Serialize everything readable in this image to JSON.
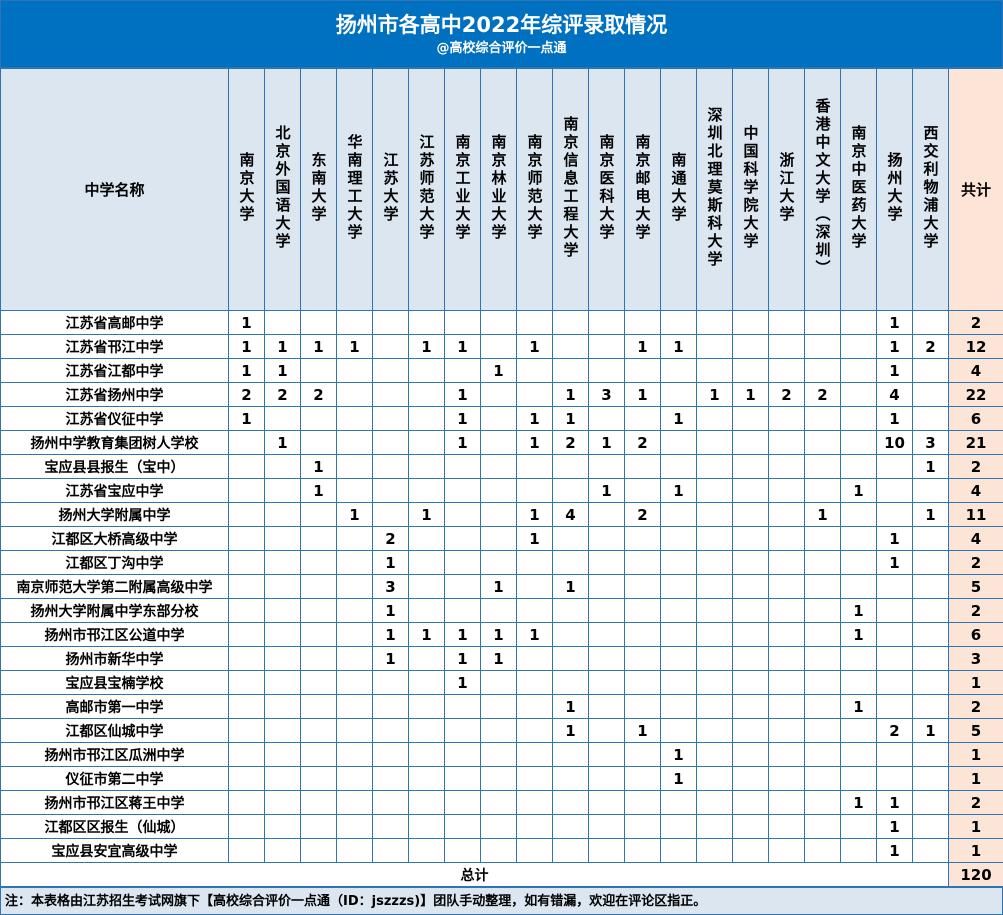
{
  "title": "扬州市各高中2022年综评录取情况",
  "subtitle": "@高校综合评价一点通",
  "colors": {
    "title_bg": "#0070c0",
    "header_bg": "#dce6f1",
    "total_bg": "#fce4d6",
    "border": "#2f75b5"
  },
  "table": {
    "name_header": "中学名称",
    "total_header": "共计",
    "universities": [
      "南京大学",
      "北京外国语大学",
      "东南大学",
      "华南理工大学",
      "江苏大学",
      "江苏师范大学",
      "南京工业大学",
      "南京林业大学",
      "南京师范大学",
      "南京信息工程大学",
      "南京医科大学",
      "南京邮电大学",
      "南通大学",
      "深圳北理莫斯科大学",
      "中国科学院大学",
      "浙江大学",
      "香港中文大学（深圳）",
      "南京中医药大学",
      "扬州大学",
      "西交利物浦大学"
    ],
    "rows": [
      {
        "school": "江苏省高邮中学",
        "values": [
          1,
          null,
          null,
          null,
          null,
          null,
          null,
          null,
          null,
          null,
          null,
          null,
          null,
          null,
          null,
          null,
          null,
          null,
          1,
          null
        ],
        "total": 2
      },
      {
        "school": "江苏省邗江中学",
        "values": [
          1,
          1,
          1,
          1,
          null,
          1,
          1,
          null,
          1,
          null,
          null,
          1,
          1,
          null,
          null,
          null,
          null,
          null,
          1,
          2
        ],
        "total": 12
      },
      {
        "school": "江苏省江都中学",
        "values": [
          1,
          1,
          null,
          null,
          null,
          null,
          null,
          1,
          null,
          null,
          null,
          null,
          null,
          null,
          null,
          null,
          null,
          null,
          1,
          null
        ],
        "total": 4
      },
      {
        "school": "江苏省扬州中学",
        "values": [
          2,
          2,
          2,
          null,
          null,
          null,
          1,
          null,
          null,
          1,
          3,
          1,
          null,
          1,
          1,
          2,
          2,
          null,
          4,
          null
        ],
        "total": 22
      },
      {
        "school": "江苏省仪征中学",
        "values": [
          1,
          null,
          null,
          null,
          null,
          null,
          1,
          null,
          1,
          1,
          null,
          null,
          1,
          null,
          null,
          null,
          null,
          null,
          1,
          null
        ],
        "total": 6
      },
      {
        "school": "扬州中学教育集团树人学校",
        "values": [
          null,
          1,
          null,
          null,
          null,
          null,
          1,
          null,
          1,
          2,
          1,
          2,
          null,
          null,
          null,
          null,
          null,
          null,
          10,
          3
        ],
        "total": 21
      },
      {
        "school": "宝应县县报生（宝中）",
        "values": [
          null,
          null,
          1,
          null,
          null,
          null,
          null,
          null,
          null,
          null,
          null,
          null,
          null,
          null,
          null,
          null,
          null,
          null,
          null,
          1
        ],
        "total": 2
      },
      {
        "school": "江苏省宝应中学",
        "values": [
          null,
          null,
          1,
          null,
          null,
          null,
          null,
          null,
          null,
          null,
          1,
          null,
          1,
          null,
          null,
          null,
          null,
          1,
          null,
          null
        ],
        "total": 4
      },
      {
        "school": "扬州大学附属中学",
        "values": [
          null,
          null,
          null,
          1,
          null,
          1,
          null,
          null,
          1,
          4,
          null,
          2,
          null,
          null,
          null,
          null,
          1,
          null,
          null,
          1
        ],
        "total": 11
      },
      {
        "school": "江都区大桥高级中学",
        "values": [
          null,
          null,
          null,
          null,
          2,
          null,
          null,
          null,
          1,
          null,
          null,
          null,
          null,
          null,
          null,
          null,
          null,
          null,
          1,
          null
        ],
        "total": 4
      },
      {
        "school": "江都区丁沟中学",
        "values": [
          null,
          null,
          null,
          null,
          1,
          null,
          null,
          null,
          null,
          null,
          null,
          null,
          null,
          null,
          null,
          null,
          null,
          null,
          1,
          null
        ],
        "total": 2
      },
      {
        "school": "南京师范大学第二附属高级中学",
        "values": [
          null,
          null,
          null,
          null,
          3,
          null,
          null,
          1,
          null,
          1,
          null,
          null,
          null,
          null,
          null,
          null,
          null,
          null,
          null,
          null
        ],
        "total": 5
      },
      {
        "school": "扬州大学附属中学东部分校",
        "values": [
          null,
          null,
          null,
          null,
          1,
          null,
          null,
          null,
          null,
          null,
          null,
          null,
          null,
          null,
          null,
          null,
          null,
          1,
          null,
          null
        ],
        "total": 2
      },
      {
        "school": "扬州市邗江区公道中学",
        "values": [
          null,
          null,
          null,
          null,
          1,
          1,
          1,
          1,
          1,
          null,
          null,
          null,
          null,
          null,
          null,
          null,
          null,
          1,
          null,
          null
        ],
        "total": 6
      },
      {
        "school": "扬州市新华中学",
        "values": [
          null,
          null,
          null,
          null,
          1,
          null,
          1,
          1,
          null,
          null,
          null,
          null,
          null,
          null,
          null,
          null,
          null,
          null,
          null,
          null
        ],
        "total": 3
      },
      {
        "school": "宝应县宝楠学校",
        "values": [
          null,
          null,
          null,
          null,
          null,
          null,
          1,
          null,
          null,
          null,
          null,
          null,
          null,
          null,
          null,
          null,
          null,
          null,
          null,
          null
        ],
        "total": 1
      },
      {
        "school": "高邮市第一中学",
        "values": [
          null,
          null,
          null,
          null,
          null,
          null,
          null,
          null,
          null,
          1,
          null,
          null,
          null,
          null,
          null,
          null,
          null,
          1,
          null,
          null
        ],
        "total": 2
      },
      {
        "school": "江都区仙城中学",
        "values": [
          null,
          null,
          null,
          null,
          null,
          null,
          null,
          null,
          null,
          1,
          null,
          1,
          null,
          null,
          null,
          null,
          null,
          null,
          2,
          1
        ],
        "total": 5
      },
      {
        "school": "扬州市邗江区瓜洲中学",
        "values": [
          null,
          null,
          null,
          null,
          null,
          null,
          null,
          null,
          null,
          null,
          null,
          null,
          1,
          null,
          null,
          null,
          null,
          null,
          null,
          null
        ],
        "total": 1
      },
      {
        "school": "仪征市第二中学",
        "values": [
          null,
          null,
          null,
          null,
          null,
          null,
          null,
          null,
          null,
          null,
          null,
          null,
          1,
          null,
          null,
          null,
          null,
          null,
          null,
          null
        ],
        "total": 1
      },
      {
        "school": "扬州市邗江区蒋王中学",
        "values": [
          null,
          null,
          null,
          null,
          null,
          null,
          null,
          null,
          null,
          null,
          null,
          null,
          null,
          null,
          null,
          null,
          null,
          1,
          1,
          null
        ],
        "total": 2
      },
      {
        "school": "江都区区报生（仙城）",
        "values": [
          null,
          null,
          null,
          null,
          null,
          null,
          null,
          null,
          null,
          null,
          null,
          null,
          null,
          null,
          null,
          null,
          null,
          null,
          1,
          null
        ],
        "total": 1
      },
      {
        "school": "宝应县安宜高级中学",
        "values": [
          null,
          null,
          null,
          null,
          null,
          null,
          null,
          null,
          null,
          null,
          null,
          null,
          null,
          null,
          null,
          null,
          null,
          null,
          1,
          null
        ],
        "total": 1
      }
    ],
    "sum_label": "总计",
    "sum_total": 120
  },
  "note": "注：本表格由江苏招生考试网旗下【高校综合评价一点通（ID：jszzzs)】团队手动整理，如有错漏，欢迎在评论区指正。"
}
